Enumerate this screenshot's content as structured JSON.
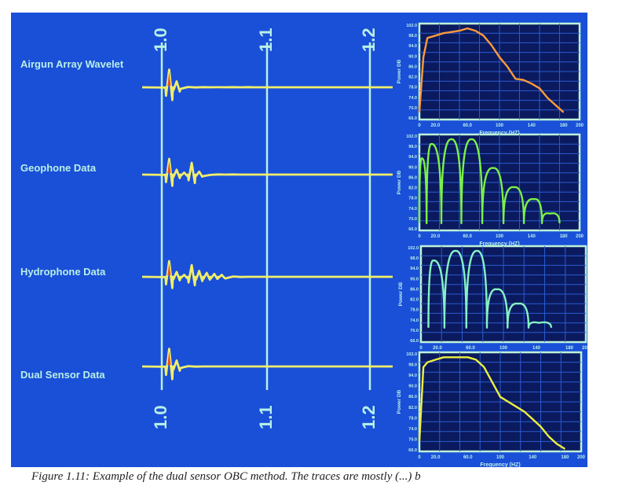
{
  "slide": {
    "background": "#1a4fd8",
    "trace_color": "#f0ee6a",
    "peak_color": "#e8502a",
    "gridline_color": "#b8f0e8",
    "panel_bg": "#0b1a5e",
    "panel_border": "#bdf2d8"
  },
  "time_axis": {
    "tick_labels": [
      "1.0",
      "1.1",
      "1.2"
    ]
  },
  "chart_data": [
    {
      "type": "line",
      "title": "Airgun Array Wavelet",
      "series": [
        {
          "x": [
            0,
            0.06,
            0.12,
            0.18,
            0.24,
            0.3,
            0.36,
            0.42,
            0.48,
            0.54,
            0.6,
            0.66,
            0.72,
            0.78,
            0.84,
            0.9,
            0.96,
            1.0
          ],
          "y": [
            0,
            0.05,
            0.9,
            0.3,
            0.05,
            0.02,
            0.02,
            0.0,
            0.01,
            0.0,
            0.02,
            0.0,
            0.02,
            0.0,
            0.0,
            0.0,
            0.0,
            0.0
          ]
        }
      ],
      "spectrum": {
        "color": "#ff9a3c",
        "x": [
          0,
          5,
          10,
          20,
          30,
          40,
          50,
          60,
          70,
          80,
          90,
          100,
          110,
          120,
          130,
          140,
          150,
          160,
          170,
          180
        ],
        "y": [
          65,
          88,
          96,
          97,
          98,
          98.5,
          99,
          100,
          99,
          97,
          93,
          88,
          84,
          79,
          78.5,
          77,
          75,
          71,
          68,
          65
        ]
      }
    },
    {
      "type": "line",
      "title": "Geophone Data",
      "series": [
        {
          "x": [
            0,
            0.06,
            0.12,
            0.18,
            0.24,
            0.3,
            0.36,
            0.42,
            0.48,
            0.54,
            0.6,
            0.66,
            0.72,
            0.78,
            0.84,
            0.9,
            0.96,
            1.0
          ],
          "y": [
            0,
            0.05,
            0.8,
            0.25,
            0.1,
            0.6,
            0.15,
            0.05,
            0.02,
            0.0,
            0.02,
            0.0,
            0.0,
            0.0,
            0.0,
            0.0,
            0.0,
            0.0
          ]
        }
      ],
      "spectrum": {
        "color": "#7cf04a",
        "peaks": [
          [
            3,
            92
          ],
          [
            15,
            98
          ],
          [
            40,
            100
          ],
          [
            65,
            100
          ],
          [
            92,
            88
          ],
          [
            118,
            80
          ],
          [
            143,
            75
          ],
          [
            163,
            69
          ]
        ],
        "y_floor": 65,
        "x_max": 175
      }
    },
    {
      "type": "line",
      "title": "Hydrophone Data",
      "series": [
        {
          "x": [
            0,
            0.06,
            0.12,
            0.18,
            0.24,
            0.3,
            0.36,
            0.42,
            0.48,
            0.54,
            0.6,
            0.66,
            0.72,
            0.78,
            0.84,
            0.9,
            0.96,
            1.0
          ],
          "y": [
            0,
            0.05,
            0.8,
            0.25,
            0.1,
            0.6,
            0.3,
            0.2,
            0.15,
            0.1,
            0.05,
            0.02,
            0.0,
            0.0,
            0.0,
            0.0,
            0.0,
            0.0
          ]
        }
      ],
      "spectrum": {
        "color": "#86f2c4",
        "peaks": [
          [
            15,
            96
          ],
          [
            42,
            100
          ],
          [
            68,
            100
          ],
          [
            92,
            84
          ],
          [
            118,
            78
          ],
          [
            143,
            70
          ]
        ],
        "y_floor": 68,
        "x_max": 158
      }
    },
    {
      "type": "line",
      "title": "Dual Sensor Data",
      "series": [
        {
          "x": [
            0,
            0.06,
            0.12,
            0.18,
            0.24,
            0.3,
            0.36,
            0.42,
            0.48,
            0.54,
            0.6,
            0.66,
            0.72,
            0.78,
            0.84,
            0.9,
            0.96,
            1.0
          ],
          "y": [
            0,
            0.05,
            0.9,
            0.3,
            0.05,
            0.02,
            0.0,
            0.0,
            0.0,
            0.0,
            0.0,
            0.0,
            0.0,
            0.0,
            0.0,
            0.0,
            0.0,
            0.0
          ]
        }
      ],
      "spectrum": {
        "color": "#eef040",
        "x": [
          0,
          5,
          10,
          20,
          30,
          40,
          50,
          60,
          70,
          80,
          90,
          100,
          110,
          120,
          130,
          140,
          150,
          160,
          170,
          180
        ],
        "y": [
          66,
          96,
          98,
          99,
          100,
          100,
          100,
          100,
          99,
          96,
          90,
          84,
          82,
          80,
          78,
          75,
          72,
          68,
          65,
          63
        ]
      }
    }
  ],
  "spectrum_axes": {
    "ylabel": "Power DB",
    "xlabel": "Frequency  (HZ)",
    "ytick_labels": [
      "102.0",
      "98.0",
      "94.0",
      "90.0",
      "86.0",
      "82.0",
      "78.0",
      "74.0",
      "70.0",
      "66.0"
    ],
    "xtick_labels": [
      "0",
      "20.0",
      "60.0",
      "100",
      "140",
      "180",
      "200"
    ],
    "xlim": [
      0,
      200
    ],
    "ylim": [
      66,
      102
    ]
  },
  "caption": "Figure 1.11: Example of the dual sensor OBC method. The traces are mostly (...) b"
}
